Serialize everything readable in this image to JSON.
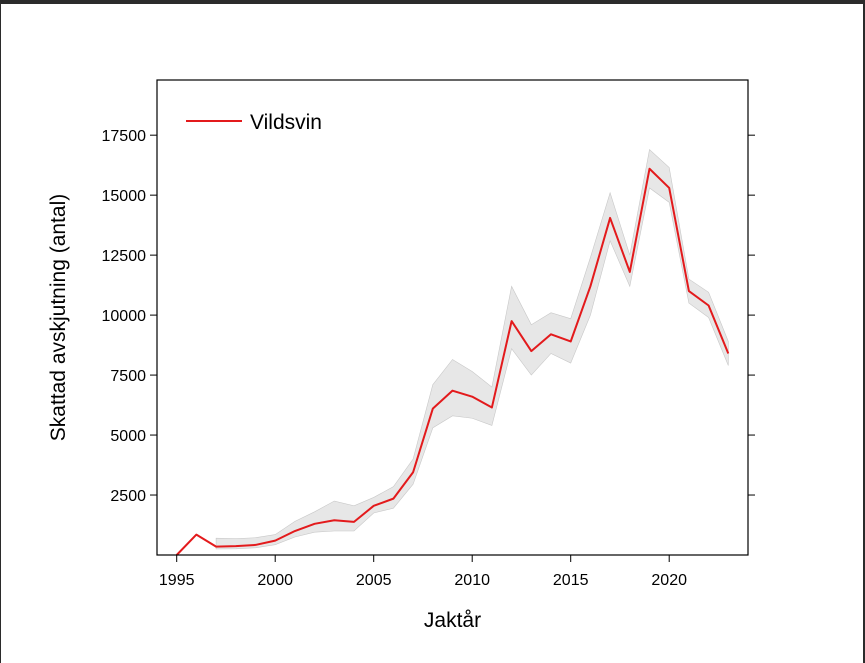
{
  "chart_data": {
    "type": "line",
    "title": "",
    "xlabel": "Jaktår",
    "ylabel": "Skattad avskjutning (antal)",
    "xlim": [
      1994,
      2024
    ],
    "ylim": [
      0,
      19800
    ],
    "xticks": [
      1995,
      2000,
      2005,
      2010,
      2015,
      2020
    ],
    "xtick_labels": [
      "1995",
      "2000",
      "2005",
      "2010",
      "2015",
      "2020"
    ],
    "yticks": [
      2500,
      5000,
      7500,
      10000,
      12500,
      15000,
      17500
    ],
    "ytick_labels": [
      "2500",
      "5000",
      "7500",
      "10000",
      "12500",
      "15000",
      "17500"
    ],
    "grid": false,
    "legend_position": "top-left",
    "series": [
      {
        "name": "Vildsvin",
        "color": "#e31a1c",
        "x": [
          1995,
          1996,
          1997,
          1998,
          1999,
          2000,
          2001,
          2002,
          2003,
          2004,
          2005,
          2006,
          2007,
          2008,
          2009,
          2010,
          2011,
          2012,
          2013,
          2014,
          2015,
          2016,
          2017,
          2018,
          2019,
          2020,
          2021,
          2022,
          2023
        ],
        "values": [
          0,
          850,
          350,
          370,
          420,
          600,
          1000,
          1300,
          1450,
          1380,
          2050,
          2350,
          3450,
          6100,
          6850,
          6600,
          6150,
          9750,
          8500,
          9200,
          8900,
          11200,
          14050,
          11800,
          16100,
          15300,
          11000,
          10400,
          8400
        ],
        "ci_lower": [
          null,
          null,
          250,
          260,
          300,
          430,
          750,
          950,
          1000,
          1000,
          1750,
          1950,
          2950,
          5300,
          5800,
          5700,
          5400,
          8600,
          7500,
          8400,
          8000,
          10000,
          13100,
          11200,
          15300,
          14700,
          10500,
          9900,
          7900
        ],
        "ci_upper": [
          null,
          null,
          700,
          680,
          720,
          850,
          1400,
          1800,
          2250,
          2050,
          2400,
          2850,
          4000,
          7100,
          8150,
          7650,
          7000,
          11200,
          9600,
          10100,
          9850,
          12400,
          15100,
          12500,
          16900,
          16150,
          11500,
          10950,
          8900
        ],
        "ci_color": "#d4d4d4"
      }
    ]
  }
}
